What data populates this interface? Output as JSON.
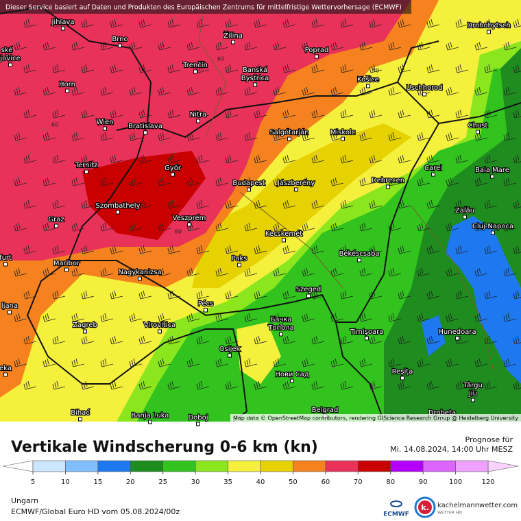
{
  "header": "Dieser Service basiert auf Daten und Produkten des Europäischen Zentrums für mittelfristige Wettervorhersage (ECMWF)",
  "attribution": "Map data © OpenStreetMap contributors, rendering GIScience Research Group @ Heidelberg University",
  "cities": [
    "Jihlava",
    "Brno",
    "Žilina",
    "Poprad",
    "Drohobytsch",
    "ské",
    "jovice",
    "Trenčín",
    "Banská",
    "Bystrica",
    "Horn",
    "Košice",
    "Uschhorod",
    "Nitra",
    "Wien",
    "Bratislava",
    "Salgótarján",
    "Miskolc",
    "Chust",
    "Ternitz",
    "Győr",
    "Carei",
    "Baia Mare",
    "Budapest",
    "Jászberény",
    "Debrecen",
    "Szombathely",
    "Zalău",
    "Graz",
    "Veszprém",
    "Kecskemét",
    "Cluj-Napoca",
    "furt",
    "Békéscsaba",
    "Paks",
    "Maribor",
    "Nagykanizsa",
    "Szeged",
    "ljana",
    "Pécs",
    "Virovitica",
    "Zagreb",
    "Бачка",
    "Топола",
    "Hunedoara",
    "Timișoara",
    "Osijek",
    "eka",
    "Нови Сад",
    "Reșița",
    "Târgu",
    "Jiu",
    "Belgrad",
    "Bihać",
    "Banja Luka",
    "Doboj",
    "Drobeta"
  ],
  "contour_labels": [
    60,
    60,
    50,
    60
  ],
  "title": "Vertikale Windscherung 0-6 km (kn)",
  "forecast_label": "Prognose für",
  "forecast_time": "Mi. 14.08.2024, 14:00 Uhr MESZ",
  "legend": {
    "ticks": [
      5,
      10,
      15,
      20,
      25,
      30,
      35,
      40,
      50,
      60,
      70,
      80,
      90,
      100,
      120
    ],
    "colors": [
      "#cce6ff",
      "#7fbfff",
      "#1e78f0",
      "#1e8c1e",
      "#32c31e",
      "#8ce61e",
      "#f5f03c",
      "#e6d200",
      "#f5821e",
      "#e8325a",
      "#c80000",
      "#b400ff",
      "#dc64ff",
      "#f0a0ff"
    ],
    "under_color": "#ffffff",
    "over_color": "#fad2ff"
  },
  "region": "Ungarn",
  "model": "ECMWF/Global Euro HD vom  05.08.2024/00z",
  "logo_ecmwf": "ECMWF",
  "logo_k": "k.",
  "site": "kachelmannwetter.com",
  "site_sub": "WETTER HD"
}
